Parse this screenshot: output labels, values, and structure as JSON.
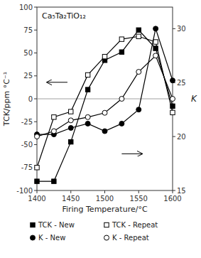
{
  "chart_data": {
    "type": "line",
    "title": "Ca₅Ta₂TiO₁₂",
    "xlabel": "Firing Temperature/°C",
    "ylabel": "TCK/ppm °C⁻¹",
    "y2label": "K",
    "xlim": [
      1400,
      1600
    ],
    "ylim": [
      -100,
      100
    ],
    "y2lim": [
      15,
      32
    ],
    "xticks": [
      1400,
      1450,
      1500,
      1550,
      1600
    ],
    "yticks": [
      -100,
      -75,
      -50,
      -25,
      0,
      25,
      50,
      75,
      100
    ],
    "y2ticks": [
      15,
      20,
      25,
      30
    ],
    "grid": false,
    "legend": "bottom",
    "x": [
      1400,
      1425,
      1450,
      1475,
      1500,
      1525,
      1550,
      1575,
      1600
    ],
    "series": [
      {
        "name": "TCK - New",
        "color": "#000000",
        "marker": "square",
        "values": [
          -90,
          -90,
          -47,
          10,
          42,
          51,
          75,
          55,
          -8
        ]
      },
      {
        "name": "TCK - Repeat",
        "color": "#000000",
        "marker": "square-open",
        "values": [
          -75,
          -20,
          -14,
          26,
          46,
          65,
          68,
          62,
          -15
        ]
      },
      {
        "name": "K - New",
        "color": "#000000",
        "marker": "circle",
        "axis": "y2",
        "values": [
          20.2,
          20.2,
          20.8,
          21.2,
          20.5,
          21.2,
          22.5,
          30.0,
          25.2
        ]
      },
      {
        "name": "K - Repeat",
        "color": "#000000",
        "marker": "circle-open",
        "axis": "y2",
        "values": [
          20.0,
          20.5,
          21.5,
          21.8,
          22.2,
          23.5,
          26.0,
          27.5,
          23.5
        ]
      }
    ],
    "annotations": [
      {
        "type": "arrow",
        "x": 1445,
        "y": 18,
        "x_to": 1415,
        "y_to": 18
      },
      {
        "type": "arrow",
        "x": 1525,
        "y": -60,
        "x_to": 1555,
        "y_to": -60
      },
      {
        "type": "hline",
        "y": 0
      }
    ],
    "background_color": "#ffffff"
  }
}
